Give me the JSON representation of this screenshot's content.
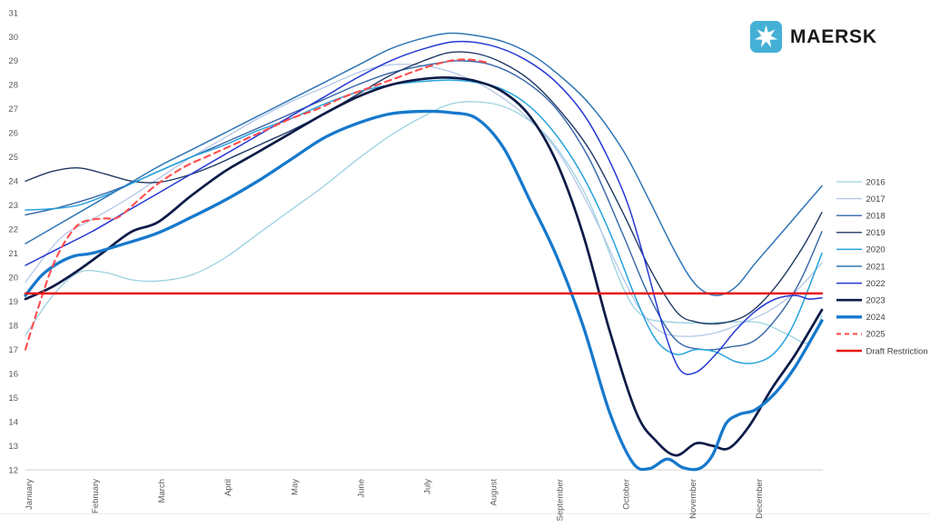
{
  "logo": {
    "brand": "MAERSK",
    "square_color": "#44b0d6",
    "star_color": "#ffffff"
  },
  "chart_data": {
    "type": "line",
    "title": "",
    "x_axis": {
      "labels": [
        "January",
        "February",
        "March",
        "April",
        "May",
        "June",
        "July",
        "August",
        "September",
        "October",
        "November",
        "December"
      ],
      "label_color": "#595959"
    },
    "y_axis": {
      "min": 12,
      "max": 31,
      "step": 1,
      "ticks": [
        12,
        13,
        14,
        15,
        16,
        17,
        18,
        19,
        20,
        21,
        22,
        23,
        24,
        25,
        26,
        27,
        28,
        29,
        30,
        31
      ],
      "label_color": "#595959"
    },
    "grid": false,
    "legend_position": "right",
    "series": [
      {
        "name": "2016",
        "color": "#99d1e0",
        "width": 1.3,
        "dash": null,
        "points": [
          [
            0,
            17.6
          ],
          [
            0.4,
            19.2
          ],
          [
            0.8,
            20.2
          ],
          [
            1.2,
            20.2
          ],
          [
            1.6,
            19.9
          ],
          [
            2,
            19.85
          ],
          [
            2.5,
            20.1
          ],
          [
            3,
            20.8
          ],
          [
            3.5,
            21.8
          ],
          [
            4,
            22.8
          ],
          [
            4.5,
            23.8
          ],
          [
            5,
            24.9
          ],
          [
            5.5,
            25.9
          ],
          [
            6,
            26.7
          ],
          [
            6.4,
            27.2
          ],
          [
            6.8,
            27.3
          ],
          [
            7.2,
            27.1
          ],
          [
            7.6,
            26.5
          ],
          [
            8,
            25.4
          ],
          [
            8.5,
            23.1
          ],
          [
            9,
            19.6
          ],
          [
            9.3,
            18.4
          ],
          [
            9.7,
            18.15
          ],
          [
            10.2,
            18.1
          ],
          [
            10.7,
            18.15
          ],
          [
            11.1,
            18.1
          ],
          [
            11.5,
            17.6
          ],
          [
            11.8,
            17.3
          ],
          [
            12,
            18.4
          ]
        ]
      },
      {
        "name": "2017",
        "color": "#b4c7e7",
        "width": 1.3,
        "dash": null,
        "points": [
          [
            0,
            19.8
          ],
          [
            0.3,
            20.9
          ],
          [
            0.6,
            21.8
          ],
          [
            1,
            22.4
          ],
          [
            1.5,
            23.2
          ],
          [
            2,
            24.1
          ],
          [
            2.5,
            25.0
          ],
          [
            3,
            25.8
          ],
          [
            3.5,
            26.6
          ],
          [
            4,
            27.3
          ],
          [
            4.5,
            27.9
          ],
          [
            5,
            28.5
          ],
          [
            5.4,
            28.8
          ],
          [
            5.8,
            28.85
          ],
          [
            6.2,
            28.7
          ],
          [
            6.6,
            28.35
          ],
          [
            7,
            27.8
          ],
          [
            7.5,
            26.8
          ],
          [
            8,
            25.3
          ],
          [
            8.5,
            22.9
          ],
          [
            9,
            20.0
          ],
          [
            9.3,
            18.5
          ],
          [
            9.6,
            17.7
          ],
          [
            10,
            17.55
          ],
          [
            10.4,
            17.7
          ],
          [
            10.8,
            18.1
          ],
          [
            11.2,
            18.6
          ],
          [
            11.6,
            19.4
          ],
          [
            12,
            20.6
          ]
        ]
      },
      {
        "name": "2018",
        "color": "#3565a8",
        "width": 1.4,
        "dash": null,
        "points": [
          [
            0,
            22.6
          ],
          [
            0.5,
            22.9
          ],
          [
            1,
            23.3
          ],
          [
            1.5,
            23.8
          ],
          [
            2,
            24.4
          ],
          [
            2.5,
            25.0
          ],
          [
            3,
            25.6
          ],
          [
            3.5,
            26.2
          ],
          [
            4,
            26.8
          ],
          [
            4.5,
            27.4
          ],
          [
            5,
            28.0
          ],
          [
            5.5,
            28.5
          ],
          [
            6,
            28.8
          ],
          [
            6.5,
            29.0
          ],
          [
            7,
            28.85
          ],
          [
            7.5,
            28.2
          ],
          [
            8,
            27.0
          ],
          [
            8.5,
            24.9
          ],
          [
            9,
            21.8
          ],
          [
            9.4,
            19.2
          ],
          [
            9.8,
            17.4
          ],
          [
            10.2,
            17.0
          ],
          [
            10.6,
            17.1
          ],
          [
            11,
            17.4
          ],
          [
            11.4,
            18.6
          ],
          [
            11.7,
            20.0
          ],
          [
            12,
            21.9
          ]
        ]
      },
      {
        "name": "2019",
        "color": "#1f3864",
        "width": 1.4,
        "dash": null,
        "points": [
          [
            0,
            24.0
          ],
          [
            0.4,
            24.4
          ],
          [
            0.8,
            24.55
          ],
          [
            1.2,
            24.3
          ],
          [
            1.6,
            24.0
          ],
          [
            2,
            23.95
          ],
          [
            2.4,
            24.2
          ],
          [
            2.8,
            24.6
          ],
          [
            3.2,
            25.1
          ],
          [
            3.6,
            25.6
          ],
          [
            4,
            26.1
          ],
          [
            4.5,
            26.8
          ],
          [
            5,
            27.6
          ],
          [
            5.5,
            28.4
          ],
          [
            6,
            29.0
          ],
          [
            6.4,
            29.35
          ],
          [
            6.8,
            29.3
          ],
          [
            7.2,
            28.9
          ],
          [
            7.6,
            28.2
          ],
          [
            8,
            27.1
          ],
          [
            8.5,
            25.3
          ],
          [
            9,
            22.7
          ],
          [
            9.4,
            20.4
          ],
          [
            9.8,
            18.6
          ],
          [
            10.1,
            18.15
          ],
          [
            10.5,
            18.1
          ],
          [
            10.9,
            18.5
          ],
          [
            11.3,
            19.6
          ],
          [
            11.7,
            21.2
          ],
          [
            12,
            22.7
          ]
        ]
      },
      {
        "name": "2020",
        "color": "#27a3dd",
        "width": 1.5,
        "dash": null,
        "points": [
          [
            0,
            22.8
          ],
          [
            0.4,
            22.85
          ],
          [
            0.8,
            23.0
          ],
          [
            1.2,
            23.4
          ],
          [
            1.6,
            23.9
          ],
          [
            2,
            24.4
          ],
          [
            2.5,
            25.0
          ],
          [
            3,
            25.5
          ],
          [
            3.5,
            26.1
          ],
          [
            4,
            26.6
          ],
          [
            4.5,
            27.2
          ],
          [
            5,
            27.7
          ],
          [
            5.5,
            28.0
          ],
          [
            6,
            28.15
          ],
          [
            6.4,
            28.2
          ],
          [
            6.8,
            28.1
          ],
          [
            7.2,
            27.8
          ],
          [
            7.6,
            27.1
          ],
          [
            8,
            25.9
          ],
          [
            8.4,
            24.2
          ],
          [
            8.8,
            21.9
          ],
          [
            9.2,
            19.1
          ],
          [
            9.5,
            17.4
          ],
          [
            9.8,
            16.8
          ],
          [
            10.1,
            17.0
          ],
          [
            10.4,
            16.9
          ],
          [
            10.7,
            16.5
          ],
          [
            11,
            16.45
          ],
          [
            11.3,
            16.9
          ],
          [
            11.6,
            18.2
          ],
          [
            12,
            21.0
          ]
        ]
      },
      {
        "name": "2021",
        "color": "#2e75b6",
        "width": 1.5,
        "dash": null,
        "points": [
          [
            0,
            21.4
          ],
          [
            0.5,
            22.2
          ],
          [
            1,
            23.0
          ],
          [
            1.5,
            23.8
          ],
          [
            2,
            24.6
          ],
          [
            2.5,
            25.3
          ],
          [
            3,
            26.0
          ],
          [
            3.5,
            26.7
          ],
          [
            4,
            27.4
          ],
          [
            4.5,
            28.1
          ],
          [
            5,
            28.8
          ],
          [
            5.5,
            29.5
          ],
          [
            6,
            29.95
          ],
          [
            6.4,
            30.15
          ],
          [
            6.8,
            30.05
          ],
          [
            7.2,
            29.8
          ],
          [
            7.6,
            29.3
          ],
          [
            8,
            28.5
          ],
          [
            8.5,
            27.2
          ],
          [
            9,
            25.3
          ],
          [
            9.4,
            23.2
          ],
          [
            9.8,
            21.0
          ],
          [
            10.1,
            19.7
          ],
          [
            10.4,
            19.25
          ],
          [
            10.7,
            19.6
          ],
          [
            11,
            20.6
          ],
          [
            11.5,
            22.2
          ],
          [
            12,
            23.8
          ]
        ]
      },
      {
        "name": "2022",
        "color": "#2438d2",
        "width": 1.5,
        "dash": null,
        "points": [
          [
            0,
            20.5
          ],
          [
            0.5,
            21.2
          ],
          [
            1,
            21.9
          ],
          [
            1.5,
            22.7
          ],
          [
            2,
            23.5
          ],
          [
            2.5,
            24.3
          ],
          [
            3,
            25.1
          ],
          [
            3.5,
            25.9
          ],
          [
            4,
            26.7
          ],
          [
            4.5,
            27.5
          ],
          [
            5,
            28.3
          ],
          [
            5.5,
            29.0
          ],
          [
            6,
            29.5
          ],
          [
            6.5,
            29.8
          ],
          [
            7,
            29.65
          ],
          [
            7.5,
            29.1
          ],
          [
            8,
            28.1
          ],
          [
            8.5,
            26.4
          ],
          [
            9,
            23.6
          ],
          [
            9.3,
            21.0
          ],
          [
            9.6,
            18.0
          ],
          [
            9.85,
            16.2
          ],
          [
            10.1,
            16.05
          ],
          [
            10.4,
            16.8
          ],
          [
            10.7,
            17.8
          ],
          [
            11,
            18.6
          ],
          [
            11.3,
            19.1
          ],
          [
            11.6,
            19.25
          ],
          [
            11.8,
            19.1
          ],
          [
            12,
            19.15
          ]
        ]
      },
      {
        "name": "2023",
        "color": "#0c1b47",
        "width": 2.7,
        "dash": null,
        "points": [
          [
            0,
            19.1
          ],
          [
            0.4,
            19.6
          ],
          [
            0.8,
            20.3
          ],
          [
            1.2,
            21.1
          ],
          [
            1.6,
            21.9
          ],
          [
            2,
            22.3
          ],
          [
            2.5,
            23.4
          ],
          [
            3,
            24.4
          ],
          [
            3.5,
            25.2
          ],
          [
            4,
            26.0
          ],
          [
            4.5,
            26.8
          ],
          [
            5,
            27.5
          ],
          [
            5.5,
            28.0
          ],
          [
            6,
            28.25
          ],
          [
            6.4,
            28.3
          ],
          [
            6.8,
            28.15
          ],
          [
            7.2,
            27.7
          ],
          [
            7.6,
            26.7
          ],
          [
            8,
            24.8
          ],
          [
            8.4,
            21.8
          ],
          [
            8.8,
            17.8
          ],
          [
            9.2,
            14.4
          ],
          [
            9.5,
            13.2
          ],
          [
            9.8,
            12.6
          ],
          [
            10.1,
            13.1
          ],
          [
            10.35,
            13.0
          ],
          [
            10.6,
            12.9
          ],
          [
            10.9,
            13.8
          ],
          [
            11.25,
            15.4
          ],
          [
            11.6,
            16.8
          ],
          [
            12,
            18.65
          ]
        ]
      },
      {
        "name": "2024",
        "color": "#1679cc",
        "width": 3.3,
        "dash": null,
        "points": [
          [
            0,
            19.25
          ],
          [
            0.25,
            20.1
          ],
          [
            0.5,
            20.6
          ],
          [
            0.75,
            20.9
          ],
          [
            1,
            21.0
          ],
          [
            1.5,
            21.4
          ],
          [
            2,
            21.85
          ],
          [
            2.5,
            22.5
          ],
          [
            3,
            23.2
          ],
          [
            3.5,
            24.0
          ],
          [
            4,
            24.9
          ],
          [
            4.5,
            25.8
          ],
          [
            5,
            26.4
          ],
          [
            5.5,
            26.8
          ],
          [
            6,
            26.9
          ],
          [
            6.4,
            26.85
          ],
          [
            6.8,
            26.6
          ],
          [
            7.2,
            25.4
          ],
          [
            7.6,
            23.2
          ],
          [
            8,
            20.9
          ],
          [
            8.4,
            18.0
          ],
          [
            8.8,
            14.4
          ],
          [
            9.15,
            12.3
          ],
          [
            9.4,
            12.05
          ],
          [
            9.67,
            12.45
          ],
          [
            9.9,
            12.1
          ],
          [
            10.15,
            12.05
          ],
          [
            10.35,
            12.6
          ],
          [
            10.55,
            13.9
          ],
          [
            10.75,
            14.3
          ],
          [
            11,
            14.5
          ],
          [
            11.3,
            15.2
          ],
          [
            11.6,
            16.3
          ],
          [
            12,
            18.2
          ]
        ]
      },
      {
        "name": "2025",
        "color": "#ff4d4d",
        "width": 2.1,
        "dash": "7 5",
        "points": [
          [
            0,
            17.0
          ],
          [
            0.2,
            18.8
          ],
          [
            0.4,
            20.4
          ],
          [
            0.6,
            21.5
          ],
          [
            0.8,
            22.2
          ],
          [
            1,
            22.4
          ],
          [
            1.2,
            22.45
          ],
          [
            1.4,
            22.5
          ],
          [
            1.7,
            23.2
          ],
          [
            2,
            23.9
          ],
          [
            2.4,
            24.6
          ],
          [
            2.8,
            25.1
          ],
          [
            3.2,
            25.6
          ],
          [
            3.6,
            26.1
          ],
          [
            4,
            26.6
          ],
          [
            4.4,
            27.0
          ],
          [
            4.8,
            27.5
          ],
          [
            5.2,
            27.9
          ],
          [
            5.6,
            28.3
          ],
          [
            6,
            28.7
          ],
          [
            6.4,
            29.0
          ],
          [
            6.7,
            29.05
          ],
          [
            7,
            28.9
          ]
        ]
      },
      {
        "name": "Draft Restriction",
        "color": "#e81414",
        "width": 2.5,
        "dash": null,
        "points": [
          [
            0,
            19.33
          ],
          [
            12,
            19.33
          ]
        ]
      }
    ]
  }
}
